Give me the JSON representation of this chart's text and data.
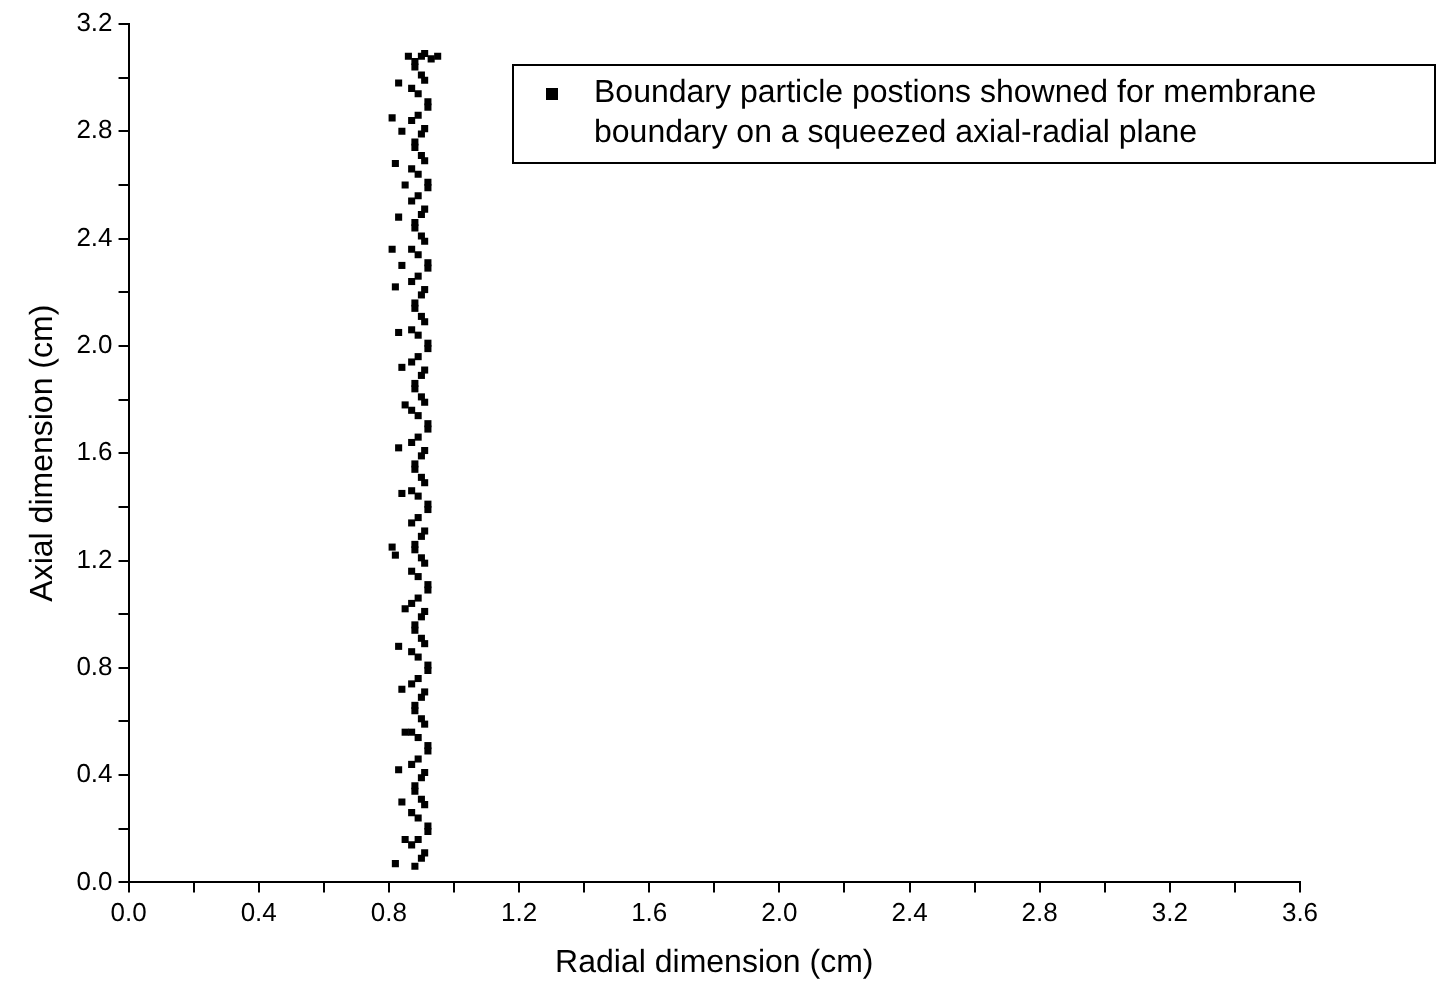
{
  "chart_data": {
    "type": "scatter",
    "xlabel": "Radial dimension (cm)",
    "ylabel": "Axial dimension (cm)",
    "xlim": [
      0,
      3.6
    ],
    "ylim": [
      0,
      3.2
    ],
    "xticks": [
      {
        "value": 0,
        "label": "0.0"
      },
      {
        "value": 0.2,
        "label": null
      },
      0.4,
      {
        "value": 0.6,
        "label": null
      },
      0.8,
      {
        "value": 1.0,
        "label": null
      },
      1.2,
      {
        "value": 1.4,
        "label": null
      },
      1.6,
      {
        "value": 1.8,
        "label": null
      },
      {
        "value": 2,
        "label": "2.0"
      },
      {
        "value": 2.2,
        "label": null
      },
      2.4,
      {
        "value": 2.6,
        "label": null
      },
      2.8,
      {
        "value": 3.0,
        "label": null
      },
      3.2,
      {
        "value": 3.4,
        "label": null
      },
      3.6
    ],
    "yticks": [
      {
        "value": 0,
        "label": "0.0"
      },
      {
        "value": 0.2,
        "label": null
      },
      0.4,
      {
        "value": 0.6,
        "label": null
      },
      0.8,
      {
        "value": 1.0,
        "label": null
      },
      1.2,
      {
        "value": 1.4,
        "label": null
      },
      1.6,
      {
        "value": 1.8,
        "label": null
      },
      {
        "value": 2,
        "label": "2.0"
      },
      {
        "value": 2.2,
        "label": null
      },
      2.4,
      {
        "value": 2.6,
        "label": null
      },
      2.8,
      {
        "value": 3.0,
        "label": null
      },
      3.2
    ],
    "grid": false,
    "legend": "top right",
    "marker": "square",
    "series": [
      {
        "name": "Boundary particle postions showned for membrane boundary on a squeezed axial-radial plane",
        "color": "#000000",
        "x": [
          0.88,
          0.91,
          0.89,
          0.92,
          0.87,
          0.9,
          0.88,
          0.91,
          0.89,
          0.92,
          0.87,
          0.9,
          0.88,
          0.91,
          0.89,
          0.92,
          0.87,
          0.9,
          0.88,
          0.91,
          0.89,
          0.92,
          0.87,
          0.9,
          0.88,
          0.91,
          0.89,
          0.92,
          0.87,
          0.9,
          0.88,
          0.91,
          0.89,
          0.92,
          0.87,
          0.9,
          0.88,
          0.91,
          0.89,
          0.92,
          0.87,
          0.9,
          0.88,
          0.91,
          0.89,
          0.92,
          0.87,
          0.9,
          0.88,
          0.91,
          0.89,
          0.92,
          0.87,
          0.9,
          0.88,
          0.91,
          0.89,
          0.92,
          0.87,
          0.9,
          0.88,
          0.9,
          0.87,
          0.92,
          0.89,
          0.91,
          0.88,
          0.9,
          0.87,
          0.92,
          0.89,
          0.91,
          0.88,
          0.9,
          0.87,
          0.92,
          0.89,
          0.91,
          0.88,
          0.9,
          0.87,
          0.92,
          0.89,
          0.91,
          0.88,
          0.9,
          0.87,
          0.92,
          0.89,
          0.91,
          0.88,
          0.9,
          0.87,
          0.92,
          0.89,
          0.91,
          0.88,
          0.9,
          0.87,
          0.92,
          0.89,
          0.91,
          0.88,
          0.9,
          0.87,
          0.92,
          0.89,
          0.91,
          0.88,
          0.9,
          0.87,
          0.92,
          0.89,
          0.91,
          0.88,
          0.9,
          0.87,
          0.92,
          0.89,
          0.91,
          0.88,
          0.9,
          0.93,
          0.95,
          0.91,
          0.82,
          0.85,
          0.84,
          0.83,
          0.85,
          0.84,
          0.83,
          0.85,
          0.82,
          0.81,
          0.84,
          0.83,
          0.85,
          0.84,
          0.83,
          0.82,
          0.84,
          0.81,
          0.83,
          0.85,
          0.82,
          0.84,
          0.81,
          0.83,
          0.86
        ],
        "values": [
          0.06,
          0.11,
          0.16,
          0.21,
          0.26,
          0.31,
          0.36,
          0.41,
          0.46,
          0.51,
          0.56,
          0.61,
          0.66,
          0.71,
          0.76,
          0.81,
          0.86,
          0.91,
          0.96,
          1.01,
          1.06,
          1.11,
          1.16,
          1.21,
          1.26,
          1.31,
          1.36,
          1.41,
          1.46,
          1.51,
          1.56,
          1.61,
          1.66,
          1.71,
          1.76,
          1.81,
          1.86,
          1.91,
          1.96,
          2.01,
          2.06,
          2.11,
          2.16,
          2.21,
          2.26,
          2.31,
          2.36,
          2.41,
          2.46,
          2.51,
          2.56,
          2.61,
          2.66,
          2.71,
          2.76,
          2.81,
          2.86,
          2.91,
          2.96,
          3.01,
          3.06,
          0.09,
          0.14,
          0.19,
          0.24,
          0.29,
          0.34,
          0.39,
          0.44,
          0.49,
          0.54,
          0.59,
          0.64,
          0.69,
          0.74,
          0.79,
          0.84,
          0.89,
          0.94,
          0.99,
          1.04,
          1.09,
          1.14,
          1.19,
          1.24,
          1.29,
          1.34,
          1.39,
          1.44,
          1.49,
          1.54,
          1.59,
          1.64,
          1.69,
          1.74,
          1.79,
          1.84,
          1.89,
          1.94,
          1.99,
          2.04,
          2.09,
          2.14,
          2.19,
          2.24,
          2.29,
          2.34,
          2.39,
          2.44,
          2.49,
          2.54,
          2.59,
          2.64,
          2.69,
          2.74,
          2.79,
          2.84,
          2.89,
          2.94,
          2.99,
          3.04,
          3.08,
          3.07,
          3.08,
          3.09,
          0.07,
          0.16,
          0.3,
          0.42,
          0.56,
          0.72,
          0.88,
          1.02,
          1.22,
          1.25,
          1.45,
          1.62,
          1.78,
          1.92,
          2.05,
          2.22,
          2.3,
          2.36,
          2.48,
          2.6,
          2.68,
          2.8,
          2.85,
          2.98,
          3.08
        ]
      }
    ]
  }
}
